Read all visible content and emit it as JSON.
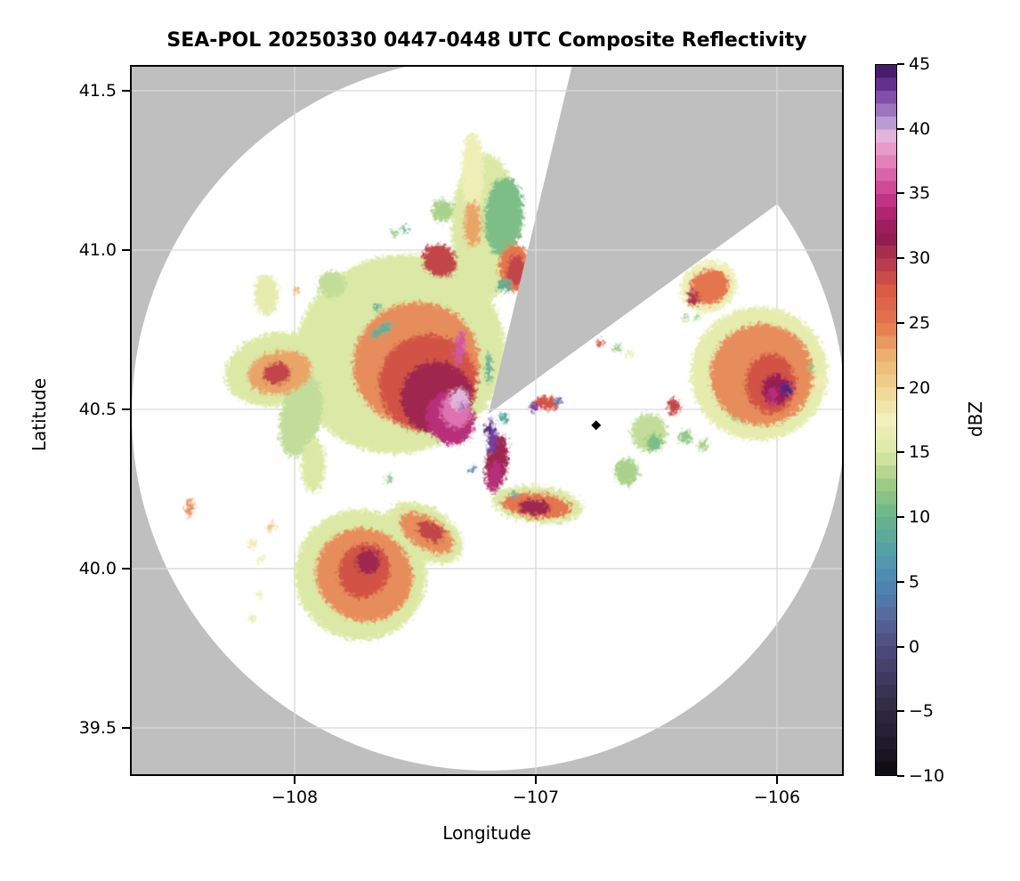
{
  "title": "SEA-POL 20250330 0447-0448 UTC Composite Reflectivity",
  "axes": {
    "xlabel": "Longitude",
    "ylabel": "Latitude",
    "lon_min": -108.683,
    "lon_max": -105.723,
    "lat_min": 39.349,
    "lat_max": 41.581,
    "x_ticks": [
      {
        "value": -108,
        "label": "−108"
      },
      {
        "value": -107,
        "label": "−107"
      },
      {
        "value": -106,
        "label": "−106"
      }
    ],
    "y_ticks": [
      {
        "value": 41.5,
        "label": "41.5"
      },
      {
        "value": 41.0,
        "label": "41.0"
      },
      {
        "value": 40.5,
        "label": "40.5"
      },
      {
        "value": 40.0,
        "label": "40.0"
      },
      {
        "value": 39.5,
        "label": "39.5"
      }
    ]
  },
  "colors": {
    "out_of_range_gray": "#bfbfbf",
    "in_range_white": "#ffffff",
    "grid": "#d9d9d9",
    "frame": "#000000",
    "marker": "#000000"
  },
  "radar": {
    "center_lon": -107.196,
    "center_lat": 40.486,
    "radius_lat_deg": 1.12,
    "missing_sector": {
      "start_az_deg": 13.5,
      "end_az_deg": 54.0
    },
    "site_marker": {
      "lon": -106.75,
      "lat": 40.45
    }
  },
  "colorbar": {
    "label": "dBZ",
    "min": -10,
    "max": 45,
    "ticks": [
      {
        "value": 45,
        "label": "45"
      },
      {
        "value": 40,
        "label": "40"
      },
      {
        "value": 35,
        "label": "35"
      },
      {
        "value": 30,
        "label": "30"
      },
      {
        "value": 25,
        "label": "25"
      },
      {
        "value": 20,
        "label": "20"
      },
      {
        "value": 15,
        "label": "15"
      },
      {
        "value": 10,
        "label": "10"
      },
      {
        "value": 5,
        "label": "5"
      },
      {
        "value": 0,
        "label": "0"
      },
      {
        "value": -5,
        "label": "−5"
      },
      {
        "value": -10,
        "label": "−10"
      }
    ]
  },
  "chart_data": {
    "type": "heatmap",
    "units": "dBZ",
    "value_range": [
      -10,
      45
    ],
    "colormap": [
      [
        -10,
        "#0b0a10"
      ],
      [
        -7.5,
        "#201b2c"
      ],
      [
        -5,
        "#2f2940"
      ],
      [
        -2.5,
        "#403a60"
      ],
      [
        0,
        "#4e4a7e"
      ],
      [
        2.5,
        "#566c9f"
      ],
      [
        5,
        "#4e87b5"
      ],
      [
        7.5,
        "#55a2a6"
      ],
      [
        10,
        "#68b48a"
      ],
      [
        12.5,
        "#9ccb85"
      ],
      [
        15,
        "#dce9a6"
      ],
      [
        17.5,
        "#f2f0bb"
      ],
      [
        20,
        "#efd492"
      ],
      [
        22.5,
        "#ecaf6e"
      ],
      [
        25,
        "#e4764e"
      ],
      [
        27.5,
        "#da5a42"
      ],
      [
        30,
        "#b23650"
      ],
      [
        31.5,
        "#941d4f"
      ],
      [
        33,
        "#a61d67"
      ],
      [
        35,
        "#c93c8c"
      ],
      [
        36.5,
        "#da64a8"
      ],
      [
        38,
        "#e78fc4"
      ],
      [
        39.5,
        "#e3b4da"
      ],
      [
        40.5,
        "#bb9bd1"
      ],
      [
        42,
        "#8e62b3"
      ],
      [
        43.5,
        "#64308f"
      ],
      [
        45,
        "#3c1259"
      ]
    ],
    "echo_fields": [
      "lon",
      "lat",
      "rx_deg",
      "ry_deg",
      "rot_deg",
      "dbz",
      "color_override"
    ],
    "echoes": [
      [
        -107.565,
        40.673,
        0.44,
        0.31,
        -20,
        15
      ],
      [
        -107.21,
        41.073,
        0.14,
        0.23,
        0,
        15
      ],
      [
        -107.262,
        41.246,
        0.045,
        0.125,
        0,
        17
      ],
      [
        -108.077,
        40.626,
        0.215,
        0.115,
        -12,
        15
      ],
      [
        -108.118,
        40.86,
        0.05,
        0.065,
        0,
        16
      ],
      [
        -107.974,
        40.478,
        0.085,
        0.13,
        12,
        14
      ],
      [
        -107.923,
        40.324,
        0.05,
        0.085,
        0,
        15
      ],
      [
        -107.727,
        39.98,
        0.275,
        0.205,
        28,
        15
      ],
      [
        -107.461,
        40.112,
        0.175,
        0.08,
        32,
        15
      ],
      [
        -106.993,
        40.201,
        0.19,
        0.058,
        6,
        15
      ],
      [
        -106.074,
        40.612,
        0.285,
        0.21,
        0,
        16
      ],
      [
        -106.284,
        40.885,
        0.12,
        0.08,
        -25,
        17
      ],
      [
        -106.531,
        40.427,
        0.075,
        0.058,
        0,
        14
      ],
      [
        -106.624,
        40.304,
        0.05,
        0.042,
        0,
        13
      ],
      [
        -107.387,
        41.123,
        0.045,
        0.035,
        0,
        13
      ],
      [
        -107.845,
        40.891,
        0.06,
        0.042,
        20,
        14
      ],
      [
        -107.133,
        41.106,
        0.08,
        0.125,
        4,
        11
      ],
      [
        -106.074,
        40.48,
        0.125,
        0.028,
        0,
        13
      ],
      [
        -106.509,
        40.394,
        0.032,
        0.026,
        0,
        11
      ],
      [
        -107.495,
        40.642,
        0.265,
        0.195,
        -22,
        24
      ],
      [
        -108.063,
        40.615,
        0.135,
        0.068,
        -12,
        23
      ],
      [
        -107.712,
        39.98,
        0.205,
        0.145,
        28,
        24
      ],
      [
        -107.454,
        40.112,
        0.125,
        0.05,
        32,
        24
      ],
      [
        -106.996,
        40.198,
        0.145,
        0.04,
        6,
        25
      ],
      [
        -106.063,
        40.609,
        0.215,
        0.16,
        0,
        24
      ],
      [
        -106.28,
        40.883,
        0.085,
        0.055,
        -25,
        25
      ],
      [
        -107.262,
        41.081,
        0.035,
        0.072,
        0,
        23
      ],
      [
        -107.089,
        40.944,
        0.065,
        0.075,
        0,
        25
      ],
      [
        -107.447,
        40.581,
        0.205,
        0.155,
        -25,
        28
      ],
      [
        -107.399,
        40.966,
        0.075,
        0.05,
        35,
        29
      ],
      [
        -108.074,
        40.612,
        0.058,
        0.035,
        -12,
        29
      ],
      [
        -107.712,
        39.994,
        0.105,
        0.088,
        28,
        28
      ],
      [
        -107.435,
        40.117,
        0.06,
        0.028,
        32,
        29
      ],
      [
        -107.004,
        40.192,
        0.068,
        0.024,
        5,
        31
      ],
      [
        -106.026,
        40.581,
        0.105,
        0.095,
        0,
        28
      ],
      [
        -106.347,
        40.849,
        0.024,
        0.024,
        0,
        30
      ],
      [
        -107.081,
        40.936,
        0.04,
        0.048,
        0,
        29
      ],
      [
        -106.428,
        40.508,
        0.026,
        0.026,
        0,
        29
      ],
      [
        -106.956,
        40.52,
        0.05,
        0.02,
        12,
        28
      ],
      [
        -107.41,
        40.536,
        0.15,
        0.115,
        -28,
        31
      ],
      [
        -107.697,
        40.022,
        0.05,
        0.038,
        25,
        31
      ],
      [
        -106.007,
        40.561,
        0.055,
        0.05,
        0,
        32
      ],
      [
        -105.959,
        40.564,
        0.026,
        0.02,
        0,
        44
      ],
      [
        -106.018,
        40.542,
        0.018,
        0.03,
        0,
        34
      ],
      [
        -107.354,
        40.472,
        0.1,
        0.085,
        -20,
        34
      ],
      [
        -107.162,
        40.33,
        0.045,
        0.092,
        8,
        31
      ],
      [
        -107.17,
        40.288,
        0.028,
        0.05,
        8,
        34
      ],
      [
        -107.332,
        40.494,
        0.062,
        0.05,
        -15,
        37
      ],
      [
        -107.314,
        40.693,
        0.02,
        0.057,
        8,
        36
      ],
      [
        -107.317,
        40.531,
        0.04,
        0.034,
        -10,
        39.5
      ],
      [
        -107.306,
        40.511,
        0.014,
        0.012,
        0,
        42
      ],
      [
        -107.181,
        40.399,
        0.02,
        0.04,
        5,
        43
      ],
      [
        -107.196,
        40.447,
        0.018,
        0.026,
        0,
        44
      ],
      [
        -107.21,
        40.469,
        0.014,
        0.02,
        0,
        null,
        "#ffffff"
      ],
      [
        -107.133,
        40.472,
        0.02,
        0.015,
        0,
        8
      ],
      [
        -107.196,
        40.631,
        0.013,
        0.05,
        0,
        9
      ],
      [
        -107.639,
        40.749,
        0.055,
        0.014,
        -35,
        9
      ],
      [
        -107.092,
        40.232,
        0.014,
        0.012,
        0,
        8
      ],
      [
        -107.262,
        40.313,
        0.011,
        0.011,
        0,
        4
      ],
      [
        -106.908,
        40.525,
        0.014,
        0.01,
        0,
        3
      ],
      [
        -107.007,
        40.506,
        0.016,
        0.014,
        0,
        43
      ],
      [
        -107.133,
        40.888,
        0.03,
        0.018,
        -10,
        9
      ],
      [
        -108.435,
        40.19,
        0.016,
        0.028,
        0,
        24
      ],
      [
        -108.173,
        40.078,
        0.018,
        0.015,
        0,
        18
      ],
      [
        -108.14,
        40.031,
        0.015,
        0.013,
        0,
        17
      ],
      [
        -108.096,
        40.131,
        0.015,
        0.013,
        0,
        21
      ],
      [
        -108.148,
        39.919,
        0.014,
        0.012,
        0,
        17
      ],
      [
        -108.177,
        39.844,
        0.014,
        0.012,
        0,
        16
      ],
      [
        -106.734,
        40.707,
        0.013,
        0.011,
        0,
        28
      ],
      [
        -106.664,
        40.693,
        0.016,
        0.012,
        0,
        12
      ],
      [
        -106.613,
        40.676,
        0.015,
        0.011,
        0,
        16
      ],
      [
        -107.657,
        40.818,
        0.018,
        0.012,
        0,
        9
      ],
      [
        -107.609,
        40.282,
        0.015,
        0.012,
        0,
        12
      ],
      [
        -106.38,
        40.79,
        0.012,
        0.01,
        0,
        12
      ],
      [
        -106.332,
        40.788,
        0.012,
        0.01,
        0,
        13
      ],
      [
        -105.86,
        40.628,
        0.014,
        0.012,
        0,
        12
      ],
      [
        -105.823,
        40.584,
        0.03,
        0.022,
        0,
        18
      ],
      [
        -106.38,
        40.413,
        0.028,
        0.02,
        0,
        12
      ],
      [
        -106.306,
        40.388,
        0.022,
        0.016,
        0,
        13
      ],
      [
        -107.993,
        40.874,
        0.012,
        0.01,
        0,
        22
      ],
      [
        -107.543,
        41.064,
        0.014,
        0.01,
        0,
        10
      ],
      [
        -107.587,
        41.053,
        0.012,
        0.01,
        0,
        12
      ]
    ]
  }
}
